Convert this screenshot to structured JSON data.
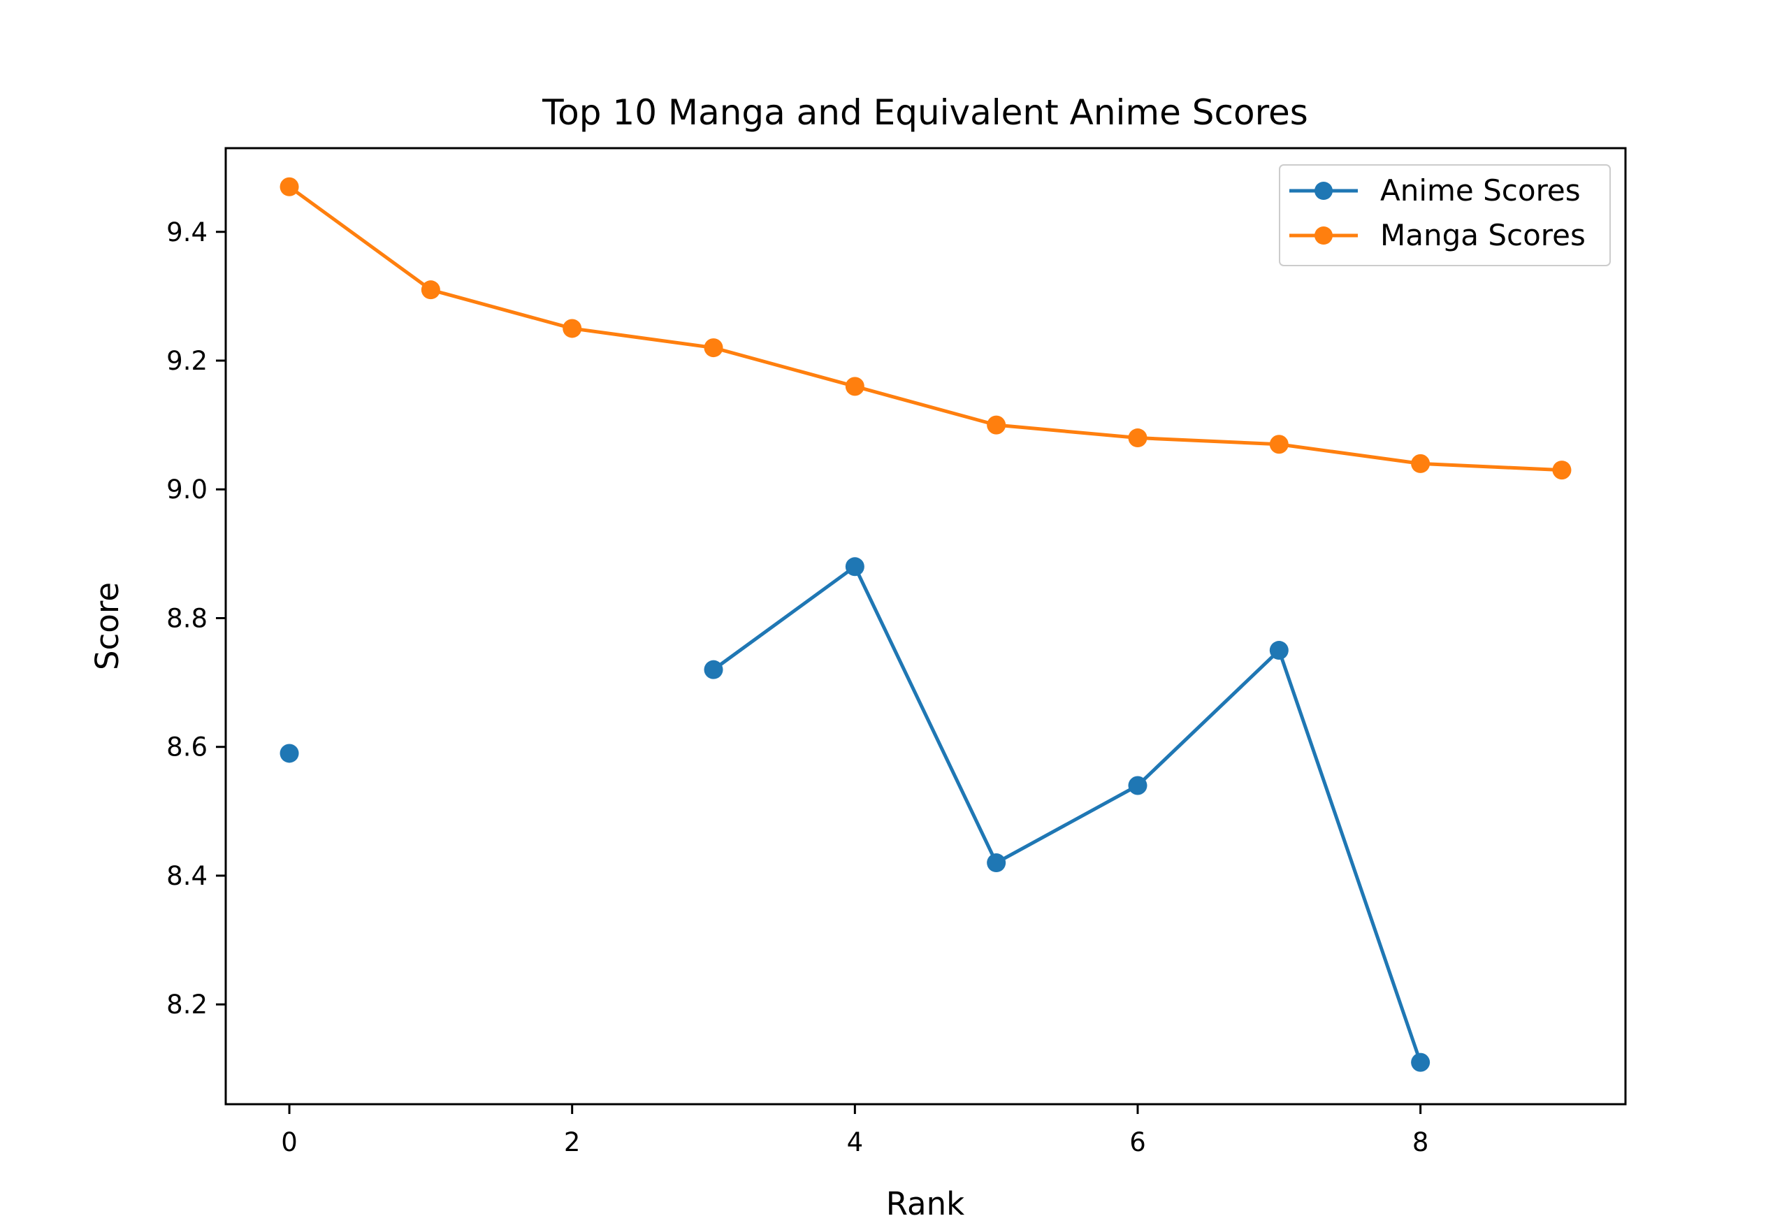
{
  "chart_data": {
    "type": "line",
    "title": "Top 10 Manga and Equivalent Anime Scores",
    "xlabel": "Rank",
    "ylabel": "Score",
    "x": [
      0,
      1,
      2,
      3,
      4,
      5,
      6,
      7,
      8,
      9
    ],
    "xlim": [
      -0.45,
      9.45
    ],
    "ylim": [
      8.045,
      9.53
    ],
    "xticks": [
      0,
      2,
      4,
      6,
      8
    ],
    "xtick_labels": [
      "0",
      "2",
      "4",
      "6",
      "8"
    ],
    "yticks": [
      8.2,
      8.4,
      8.6,
      8.8,
      9.0,
      9.2,
      9.4
    ],
    "ytick_labels": [
      "8.2",
      "8.4",
      "8.6",
      "8.8",
      "9.0",
      "9.2",
      "9.4"
    ],
    "grid": false,
    "legend_position": "top-right",
    "series": [
      {
        "name": "Anime Scores",
        "color": "#1f77b4",
        "values": [
          8.59,
          null,
          null,
          8.72,
          8.88,
          8.42,
          8.54,
          8.75,
          8.11,
          null
        ]
      },
      {
        "name": "Manga Scores",
        "color": "#ff7f0e",
        "values": [
          9.47,
          9.31,
          9.25,
          9.22,
          9.16,
          9.1,
          9.08,
          9.07,
          9.04,
          9.03
        ]
      }
    ]
  }
}
